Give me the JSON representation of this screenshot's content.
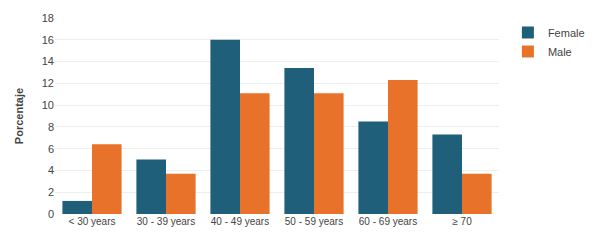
{
  "chart_data": {
    "type": "bar",
    "categories": [
      "< 30 years",
      "30 - 39 years",
      "40 - 49 years",
      "50 - 59 years",
      "60 - 69 years",
      "≥ 70"
    ],
    "series": [
      {
        "name": "Female",
        "color": "#1F5F7A",
        "values": [
          1.2,
          5.0,
          16.0,
          13.4,
          8.5,
          7.3
        ]
      },
      {
        "name": "Male",
        "color": "#E8722A",
        "values": [
          6.4,
          3.7,
          11.1,
          11.1,
          12.3,
          3.7
        ]
      }
    ],
    "ylabel": "Porcentaje",
    "ylim": [
      0,
      18
    ],
    "yticks": [
      0,
      2,
      4,
      6,
      8,
      10,
      12,
      14,
      16,
      18
    ],
    "grid": true,
    "legend": "upper right"
  }
}
